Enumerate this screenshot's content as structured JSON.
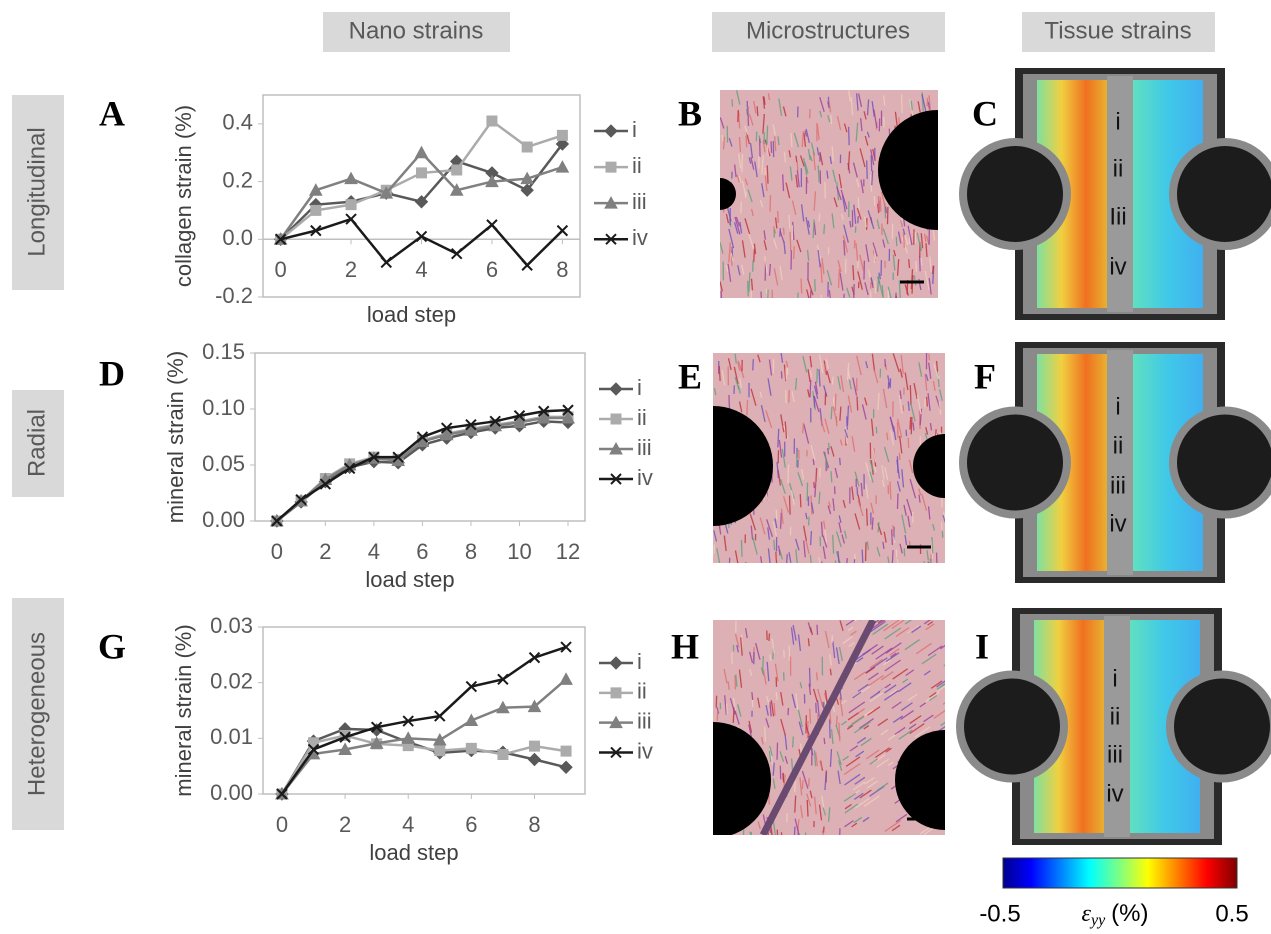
{
  "headers": [
    "Nano strains",
    "Microstructures",
    "Tissue strains"
  ],
  "row_labels": [
    "Longitudinal",
    "Radial",
    "Heterogeneous"
  ],
  "panels": [
    "A",
    "B",
    "C",
    "D",
    "E",
    "F",
    "G",
    "H",
    "I"
  ],
  "tissue_labels": [
    [
      "i",
      "ii",
      "Iii",
      "iv"
    ],
    [
      "i",
      "ii",
      "iii",
      "iv"
    ],
    [
      "i",
      "ii",
      "iii",
      "iv"
    ]
  ],
  "colorbar": {
    "min": -0.5,
    "max": 0.5,
    "symbol": "ε",
    "subscript": "yy",
    "unit": "(%)"
  },
  "chart_data": [
    {
      "type": "line",
      "x_label": "load step",
      "y_label": "collagen strain (%)",
      "legend": "right",
      "grid": false,
      "x": [
        0,
        1,
        2,
        3,
        4,
        5,
        6,
        7,
        8
      ],
      "xlim": [
        -0.5,
        8.5
      ],
      "xticks": [
        0,
        2,
        4,
        6,
        8
      ],
      "ylim": [
        -0.2,
        0.5
      ],
      "yticks": [
        -0.2,
        {
          "value": 0,
          "label": "0.0"
        },
        0.2,
        0.4
      ],
      "series": [
        {
          "name": "i",
          "color": "#595959",
          "marker": "diamond",
          "values": [
            0,
            0.12,
            0.13,
            0.16,
            0.13,
            0.27,
            0.23,
            0.17,
            0.33
          ]
        },
        {
          "name": "ii",
          "color": "#ababab",
          "marker": "square",
          "values": [
            0,
            0.1,
            0.12,
            0.17,
            0.23,
            0.24,
            0.41,
            0.32,
            0.36
          ]
        },
        {
          "name": "iii",
          "color": "#808080",
          "marker": "triangle",
          "values": [
            0,
            0.17,
            0.21,
            0.16,
            0.3,
            0.17,
            0.2,
            0.21,
            0.25
          ]
        },
        {
          "name": "iv",
          "color": "#1a1a1a",
          "marker": "x",
          "values": [
            0,
            0.03,
            0.07,
            -0.08,
            0.01,
            -0.05,
            0.05,
            -0.09,
            0.03
          ]
        }
      ]
    },
    {
      "type": "line",
      "x_label": "load step",
      "y_label": "mineral strain (%)",
      "legend": "right",
      "grid": false,
      "x": [
        0,
        1,
        2,
        3,
        4,
        5,
        6,
        7,
        8,
        9,
        10,
        11,
        12
      ],
      "xlim": [
        -0.9,
        12.7
      ],
      "xticks": [
        0,
        2,
        4,
        6,
        8,
        10,
        12
      ],
      "ylim": [
        0,
        0.15
      ],
      "yticks": [
        {
          "value": 0,
          "label": "0.00"
        },
        0.05,
        {
          "value": 0.1,
          "label": "0.10"
        },
        0.15
      ],
      "series": [
        {
          "name": "i",
          "color": "#595959",
          "marker": "diamond",
          "values": [
            0,
            0.017,
            0.035,
            0.048,
            0.053,
            0.052,
            0.068,
            0.074,
            0.079,
            0.083,
            0.085,
            0.089,
            0.088
          ]
        },
        {
          "name": "ii",
          "color": "#ababab",
          "marker": "square",
          "values": [
            0,
            0.018,
            0.038,
            0.051,
            0.057,
            0.055,
            0.072,
            0.078,
            0.082,
            0.086,
            0.089,
            0.093,
            0.093
          ]
        },
        {
          "name": "iii",
          "color": "#808080",
          "marker": "triangle",
          "values": [
            0,
            0.018,
            0.037,
            0.05,
            0.056,
            0.054,
            0.071,
            0.077,
            0.081,
            0.085,
            0.088,
            0.092,
            0.092
          ]
        },
        {
          "name": "iv",
          "color": "#1a1a1a",
          "marker": "x",
          "values": [
            0,
            0.019,
            0.033,
            0.047,
            0.057,
            0.057,
            0.075,
            0.083,
            0.086,
            0.089,
            0.094,
            0.098,
            0.099
          ]
        }
      ]
    },
    {
      "type": "line",
      "x_label": "load step",
      "y_label": "mineral strain (%)",
      "legend": "right",
      "grid": false,
      "x": [
        0,
        1,
        2,
        3,
        4,
        5,
        6,
        7,
        8,
        9
      ],
      "xlim": [
        -0.6,
        9.6
      ],
      "xticks": [
        0,
        2,
        4,
        6,
        8
      ],
      "ylim": [
        0,
        0.03
      ],
      "yticks": [
        {
          "value": 0,
          "label": "0.00"
        },
        0.01,
        0.02,
        0.03
      ],
      "series": [
        {
          "name": "i",
          "color": "#595959",
          "marker": "diamond",
          "values": [
            0,
            0.0095,
            0.0117,
            0.0115,
            0.0093,
            0.0074,
            0.0078,
            0.0075,
            0.0062,
            0.0048
          ]
        },
        {
          "name": "ii",
          "color": "#ababab",
          "marker": "square",
          "values": [
            0,
            0.0092,
            0.0105,
            0.009,
            0.0087,
            0.0078,
            0.0082,
            0.0071,
            0.0086,
            0.0077
          ]
        },
        {
          "name": "iii",
          "color": "#808080",
          "marker": "triangle",
          "values": [
            0,
            0.0072,
            0.008,
            0.0091,
            0.01,
            0.0097,
            0.0132,
            0.0155,
            0.0157,
            0.0206
          ]
        },
        {
          "name": "iv",
          "color": "#1a1a1a",
          "marker": "x",
          "values": [
            0,
            0.008,
            0.0102,
            0.012,
            0.0131,
            0.014,
            0.0193,
            0.0206,
            0.0245,
            0.0264
          ]
        }
      ]
    }
  ]
}
